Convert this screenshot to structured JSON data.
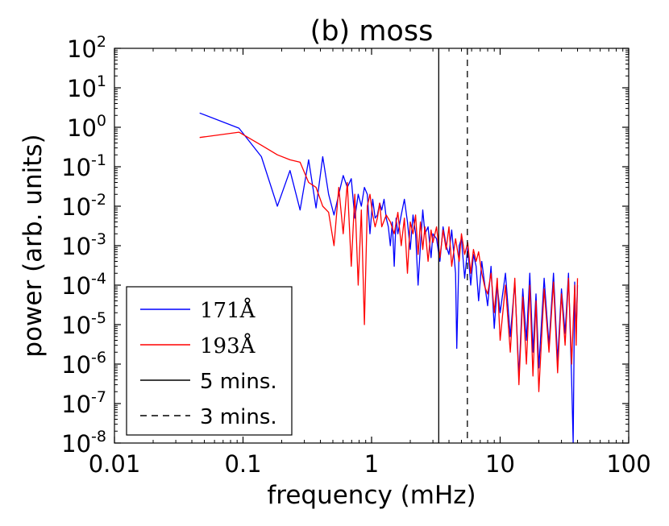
{
  "chart_data": {
    "type": "line",
    "title": "(b) moss",
    "xlabel": "frequency (mHz)",
    "ylabel": "power (arb. units)",
    "xscale": "log",
    "yscale": "log",
    "xlim": [
      0.01,
      100
    ],
    "ylim": [
      1e-08,
      100
    ],
    "x_ticks": [
      {
        "value": 0.01,
        "label": "0.01"
      },
      {
        "value": 0.1,
        "label": "0.1"
      },
      {
        "value": 1,
        "label": "1"
      },
      {
        "value": 10,
        "label": "10"
      },
      {
        "value": 100,
        "label": "100"
      }
    ],
    "y_ticks": [
      {
        "value": 1e-08,
        "base": "10",
        "exp": "-8"
      },
      {
        "value": 1e-07,
        "base": "10",
        "exp": "-7"
      },
      {
        "value": 1e-06,
        "base": "10",
        "exp": "-6"
      },
      {
        "value": 1e-05,
        "base": "10",
        "exp": "-5"
      },
      {
        "value": 0.0001,
        "base": "10",
        "exp": "-4"
      },
      {
        "value": 0.001,
        "base": "10",
        "exp": "-3"
      },
      {
        "value": 0.01,
        "base": "10",
        "exp": "-2"
      },
      {
        "value": 0.1,
        "base": "10",
        "exp": "-1"
      },
      {
        "value": 1,
        "base": "10",
        "exp": "0"
      },
      {
        "value": 10,
        "base": "10",
        "exp": "1"
      },
      {
        "value": 100,
        "base": "10",
        "exp": "2"
      }
    ],
    "grid": false,
    "legend_position": "bottom-left",
    "series": [
      {
        "name": "171Å",
        "color": "#0000ff",
        "points": [
          [
            0.046,
            2.3
          ],
          [
            0.093,
            0.95
          ],
          [
            0.139,
            0.18
          ],
          [
            0.185,
            0.01
          ],
          [
            0.232,
            0.08
          ],
          [
            0.278,
            0.008
          ],
          [
            0.324,
            0.15
          ],
          [
            0.37,
            0.009
          ],
          [
            0.417,
            0.18
          ],
          [
            0.463,
            0.02
          ],
          [
            0.51,
            0.006
          ],
          [
            0.556,
            0.02
          ],
          [
            0.602,
            0.06
          ],
          [
            0.648,
            0.03
          ],
          [
            0.695,
            0.05
          ],
          [
            0.741,
            0.005
          ],
          [
            0.787,
            0.02
          ],
          [
            0.833,
            0.01
          ],
          [
            0.88,
            0.03
          ],
          [
            0.926,
            0.02
          ],
          [
            0.972,
            0.002
          ],
          [
            1.02,
            0.015
          ],
          [
            1.065,
            0.005
          ],
          [
            1.11,
            0.006
          ],
          [
            1.157,
            0.012
          ],
          [
            1.2,
            0.008
          ],
          [
            1.25,
            0.015
          ],
          [
            1.3,
            0.005
          ],
          [
            1.35,
            0.003
          ],
          [
            1.4,
            0.001
          ],
          [
            1.45,
            0.004
          ],
          [
            1.5,
            0.0003
          ],
          [
            1.55,
            0.005
          ],
          [
            1.6,
            0.002
          ],
          [
            1.7,
            0.006
          ],
          [
            1.8,
            0.015
          ],
          [
            1.9,
            0.004
          ],
          [
            2.0,
            0.0008
          ],
          [
            2.1,
            0.006
          ],
          [
            2.2,
            0.002
          ],
          [
            2.3,
            0.0001
          ],
          [
            2.4,
            0.001
          ],
          [
            2.5,
            0.008
          ],
          [
            2.6,
            0.002
          ],
          [
            2.75,
            0.003
          ],
          [
            2.9,
            0.0005
          ],
          [
            3.0,
            0.002
          ],
          [
            3.2,
            0.0015
          ],
          [
            3.4,
            0.0004
          ],
          [
            3.6,
            0.003
          ],
          [
            3.8,
            0.001
          ],
          [
            4.0,
            0.0006
          ],
          [
            4.2,
            0.0025
          ],
          [
            4.5,
            0.0002
          ],
          [
            4.6,
            2.5e-06
          ],
          [
            4.8,
            0.001
          ],
          [
            5.0,
            0.0015
          ],
          [
            5.3,
            0.00015
          ],
          [
            5.6,
            0.0009
          ],
          [
            5.9,
            0.0001
          ],
          [
            6.2,
            0.0006
          ],
          [
            6.5,
            0.0003
          ],
          [
            6.8,
            4e-05
          ],
          [
            7.2,
            0.0004
          ],
          [
            7.6,
            0.0001
          ],
          [
            8.0,
            3e-05
          ],
          [
            8.5,
            0.0003
          ],
          [
            9.0,
            8e-06
          ],
          [
            9.5,
            0.0001
          ],
          [
            10,
            2e-05
          ],
          [
            11,
            0.0002
          ],
          [
            12,
            5e-06
          ],
          [
            13,
            0.00012
          ],
          [
            14,
            5e-07
          ],
          [
            15,
            8e-05
          ],
          [
            16,
            4e-06
          ],
          [
            17,
            0.0002
          ],
          [
            18,
            2e-06
          ],
          [
            19,
            6e-05
          ],
          [
            20,
            8e-07
          ],
          [
            22,
            0.00015
          ],
          [
            24,
            3e-06
          ],
          [
            26,
            0.0002
          ],
          [
            28,
            1.2e-06
          ],
          [
            30,
            8e-05
          ],
          [
            32,
            6e-06
          ],
          [
            34,
            0.0002
          ],
          [
            36,
            4e-07
          ],
          [
            37,
            1e-08
          ],
          [
            38,
            0.00012
          ],
          [
            39,
            5e-06
          ],
          [
            40,
            0.0001
          ]
        ]
      },
      {
        "name": "193Å",
        "color": "#ff0000",
        "points": [
          [
            0.046,
            0.55
          ],
          [
            0.093,
            0.75
          ],
          [
            0.139,
            0.35
          ],
          [
            0.185,
            0.2
          ],
          [
            0.232,
            0.15
          ],
          [
            0.278,
            0.13
          ],
          [
            0.324,
            0.04
          ],
          [
            0.37,
            0.03
          ],
          [
            0.417,
            0.01
          ],
          [
            0.463,
            0.007
          ],
          [
            0.51,
            0.001
          ],
          [
            0.556,
            0.03
          ],
          [
            0.602,
            0.002
          ],
          [
            0.648,
            0.04
          ],
          [
            0.695,
            0.0003
          ],
          [
            0.741,
            0.02
          ],
          [
            0.787,
            0.0001
          ],
          [
            0.833,
            0.008
          ],
          [
            0.88,
            1e-05
          ],
          [
            0.926,
            0.01
          ],
          [
            0.972,
            0.02
          ],
          [
            1.02,
            0.006
          ],
          [
            1.065,
            0.003
          ],
          [
            1.11,
            0.005
          ],
          [
            1.157,
            0.012
          ],
          [
            1.2,
            0.003
          ],
          [
            1.3,
            0.006
          ],
          [
            1.4,
            0.004
          ],
          [
            1.5,
            0.002
          ],
          [
            1.6,
            0.007
          ],
          [
            1.7,
            0.001
          ],
          [
            1.8,
            0.005
          ],
          [
            1.9,
            0.0002
          ],
          [
            2.0,
            0.004
          ],
          [
            2.1,
            0.002
          ],
          [
            2.2,
            0.006
          ],
          [
            2.3,
            0.0006
          ],
          [
            2.4,
            0.004
          ],
          [
            2.5,
            0.0008
          ],
          [
            2.6,
            0.003
          ],
          [
            2.75,
            0.0004
          ],
          [
            2.9,
            0.0025
          ],
          [
            3.0,
            0.0012
          ],
          [
            3.2,
            0.003
          ],
          [
            3.4,
            0.0005
          ],
          [
            3.6,
            0.0025
          ],
          [
            3.8,
            0.0008
          ],
          [
            4.0,
            0.003
          ],
          [
            4.2,
            0.0003
          ],
          [
            4.5,
            0.0015
          ],
          [
            4.8,
            0.0004
          ],
          [
            5.0,
            0.002
          ],
          [
            5.3,
            0.0006
          ],
          [
            5.6,
            0.0012
          ],
          [
            5.9,
            0.0002
          ],
          [
            6.2,
            0.0008
          ],
          [
            6.5,
            0.0004
          ],
          [
            6.8,
            0.0007
          ],
          [
            7.2,
            0.0002
          ],
          [
            7.6,
            9e-05
          ],
          [
            8.0,
            6e-05
          ],
          [
            8.5,
            0.0002
          ],
          [
            9.0,
            2e-05
          ],
          [
            9.5,
            0.00015
          ],
          [
            10,
            4e-06
          ],
          [
            11,
            0.0001
          ],
          [
            12,
            2e-06
          ],
          [
            13,
            0.00015
          ],
          [
            14,
            3e-07
          ],
          [
            15,
            5e-05
          ],
          [
            16,
            1e-06
          ],
          [
            17,
            0.0001
          ],
          [
            18,
            5e-07
          ],
          [
            19,
            4e-05
          ],
          [
            20,
            2e-07
          ],
          [
            22,
            8e-05
          ],
          [
            24,
            2e-06
          ],
          [
            26,
            0.00012
          ],
          [
            28,
            6e-07
          ],
          [
            30,
            6e-05
          ],
          [
            32,
            3e-06
          ],
          [
            34,
            0.00015
          ],
          [
            36,
            1e-06
          ],
          [
            38,
            0.0001
          ],
          [
            39,
            3e-06
          ],
          [
            40,
            0.00015
          ]
        ]
      }
    ],
    "vlines": [
      {
        "name": "5 mins.",
        "x": 3.33,
        "style": "solid",
        "color": "#000000"
      },
      {
        "name": "3 mins.",
        "x": 5.56,
        "style": "dashed",
        "color": "#000000"
      }
    ]
  }
}
